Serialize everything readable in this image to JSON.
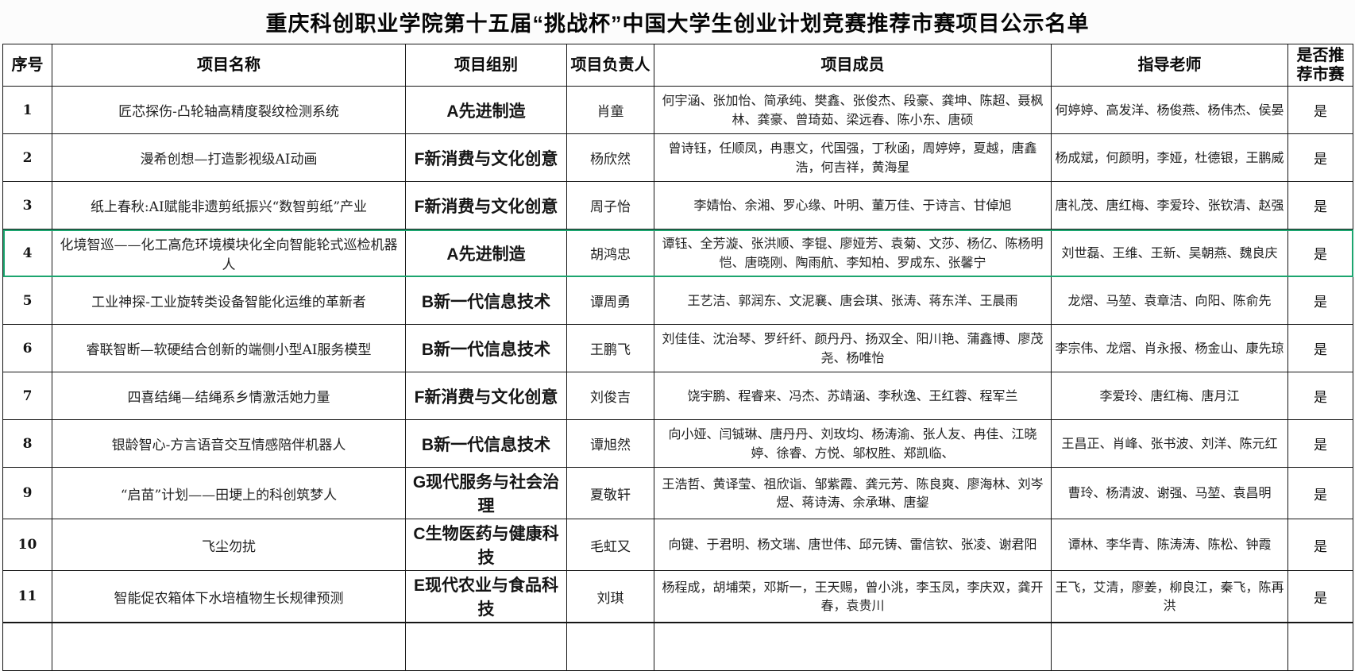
{
  "title": "重庆科创职业学院第十五届“挑战杯”中国大学生创业计划竞赛推荐市赛项目公示名单",
  "table": {
    "headers": [
      "序号",
      "项目名称",
      "项目组别",
      "项目负责人",
      "项目成员",
      "指导老师",
      "是否推荐市赛"
    ],
    "highlighted_row_no": "4",
    "highlight_color": "#1ca56f",
    "rows": [
      {
        "no": "1",
        "name": "匠芯探伤-凸轮轴高精度裂纹检测系统",
        "group": "A先进制造",
        "leader": "肖童",
        "members": "何宇涵、张加怡、简承纯、樊鑫、张俊杰、段豪、龚坤、陈超、聂枫林、龚豪、曾琦茹、梁远春、陈小东、唐硕",
        "advisors": "何婷婷、高发洋、杨俊燕、杨伟杰、侯晏",
        "recommended": "是"
      },
      {
        "no": "2",
        "name": "漫希创想—打造影视级AI动画",
        "group": "F新消费与文化创意",
        "leader": "杨欣然",
        "members": "曾诗钰，任顺凤，冉惠文，代国强，丁秋函，周婷婷，夏越，唐鑫浩，何吉祥，黄海星",
        "advisors": "杨成斌，何颜明，李娅，杜德银，王鹏威",
        "recommended": "是"
      },
      {
        "no": "3",
        "name": "纸上春秋:AI赋能非遗剪纸振兴“数智剪纸”产业",
        "group": "F新消费与文化创意",
        "leader": "周子怡",
        "members": "李婧怡、余湘、罗心缘、叶明、董万佳、于诗言、甘倬旭",
        "advisors": "唐礼茂、唐红梅、李爱玲、张钦清、赵强",
        "recommended": "是"
      },
      {
        "no": "4",
        "name": "化境智巡——化工高危环境模块化全向智能轮式巡检机器人",
        "group": "A先进制造",
        "leader": "胡鸿忠",
        "members": "谭钰、全芳漩、张洪顺、李锟、廖娅芳、袁菊、文莎、杨亿、陈杨明恺、唐晓刚、陶雨航、李知柏、罗成东、张馨宁",
        "advisors": "刘世磊、王维、王新、吴朝燕、魏良庆",
        "recommended": "是"
      },
      {
        "no": "5",
        "name": "工业神探-工业旋转类设备智能化运维的革新者",
        "group": "B新一代信息技术",
        "leader": "谭周勇",
        "members": "王艺洁、郭润东、文泥襄、唐会琪、张涛、蒋东洋、王晨雨",
        "advisors": "龙熠、马堃、袁章洁、向阳、陈俞先",
        "recommended": "是"
      },
      {
        "no": "6",
        "name": "睿联智断—软硬结合创新的端侧小型AI服务模型",
        "group": "B新一代信息技术",
        "leader": "王鹏飞",
        "members": "刘佳佳、沈治琴、罗纤纤、颜丹丹、扬双全、阳川艳、蒲鑫博、廖茂尧、杨唯怡",
        "advisors": "李宗伟、龙熠、肖永报、杨金山、康先琼",
        "recommended": "是"
      },
      {
        "no": "7",
        "name": "四喜结绳—结绳系乡情激活她力量",
        "group": "F新消费与文化创意",
        "leader": "刘俊吉",
        "members": "饶宇鹏、程睿来、冯杰、苏靖涵、李秋逸、王红蓉、程军兰",
        "advisors": "李爱玲、唐红梅、唐月江",
        "recommended": "是"
      },
      {
        "no": "8",
        "name": "银龄智心-方言语音交互情感陪伴机器人",
        "group": "B新一代信息技术",
        "leader": "谭旭然",
        "members": "向小娅、闫铖琳、唐丹丹、刘玫均、杨涛渝、张人友、冉佳、江晓婷、徐睿、方悦、邬权胜、郑凯临、",
        "advisors": "王昌正、肖峰、张书波、刘洋、陈元红",
        "recommended": "是"
      },
      {
        "no": "9",
        "name": "“启苗”计划——田埂上的科创筑梦人",
        "group": "G现代服务与社会治理",
        "leader": "夏敬轩",
        "members": "王浩哲、黄译莹、祖欣诣、邹紫霞、龚元芳、陈良爽、廖海林、刘岑煜、蒋诗涛、余承琳、唐鋆",
        "advisors": "曹玲、杨清波、谢强、马堃、袁昌明",
        "recommended": "是"
      },
      {
        "no": "10",
        "name": "飞尘勿扰",
        "group": "C生物医药与健康科技",
        "leader": "毛虹又",
        "members": "向键、于君明、杨文瑞、唐世伟、邱元铸、雷信钦、张凌、谢君阳",
        "advisors": "谭林、李华青、陈涛涛、陈松、钟霞",
        "recommended": "是"
      },
      {
        "no": "11",
        "name": "智能促农箱体下水培植物生长规律预测",
        "group": "E现代农业与食品科技",
        "leader": "刘琪",
        "members": "杨程成，胡埔荣，邓斯一，王天赐，曾小洮，李玉凤，李庆双，龚开春，袁贵川",
        "advisors": "王飞，艾清，廖姜，柳良江，秦飞，陈再洪",
        "recommended": "是"
      }
    ]
  }
}
